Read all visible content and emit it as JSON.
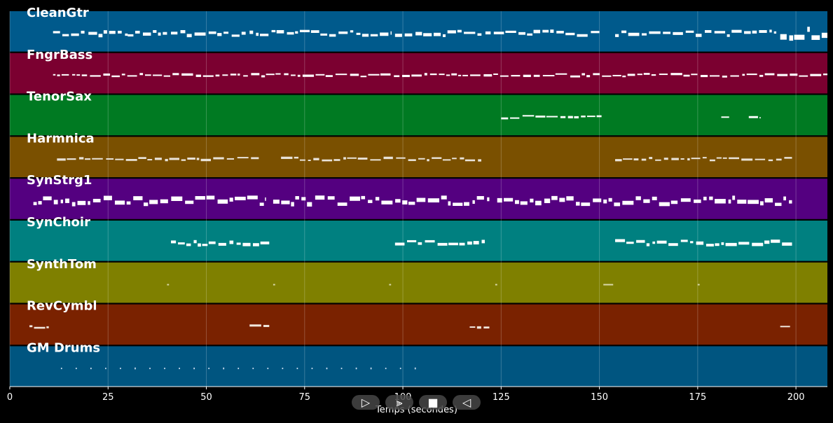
{
  "controls": {
    "play_label": "▷",
    "forward_label": "⫸",
    "stop_label": "■",
    "back_label": "◁"
  },
  "chart_data": {
    "type": "piano-roll",
    "xlabel": "Temps (secondes)",
    "xlim": [
      0,
      208
    ],
    "xticks": [
      0,
      25,
      50,
      75,
      100,
      125,
      150,
      175,
      200
    ],
    "grid": true,
    "tracks": [
      {
        "name": "CleanGtr",
        "color": "#005a8c",
        "bright": "#ffffff",
        "segments": [
          [
            11,
            19,
            1
          ],
          [
            20,
            30,
            1
          ],
          [
            30,
            40,
            1
          ],
          [
            41,
            60,
            1
          ],
          [
            61,
            97,
            1
          ],
          [
            98,
            120,
            1
          ],
          [
            121,
            150,
            1
          ],
          [
            154,
            195,
            1
          ],
          [
            196,
            208,
            2
          ]
        ]
      },
      {
        "name": "FngrBass",
        "color": "#7b0030",
        "bright": "#ffffff",
        "segments": [
          [
            11,
            208,
            0.5
          ]
        ]
      },
      {
        "name": "TenorSax",
        "color": "#007a22",
        "bright": "#ffffff",
        "segments": [
          [
            125,
            151,
            0.6
          ],
          [
            181,
            183,
            0.3
          ],
          [
            188,
            191,
            0.3
          ]
        ]
      },
      {
        "name": "Harmnica",
        "color": "#7a5000",
        "bright": "#e8e2d8",
        "segments": [
          [
            12,
            64,
            0.5
          ],
          [
            69,
            120,
            0.5
          ],
          [
            154,
            199,
            0.5
          ]
        ]
      },
      {
        "name": "SynStrg1",
        "color": "#540080",
        "bright": "#ffffff",
        "segments": [
          [
            6,
            65,
            1.5
          ],
          [
            67,
            122,
            1.5
          ],
          [
            124,
            199,
            1.5
          ]
        ]
      },
      {
        "name": "SynChoir",
        "color": "#008080",
        "bright": "#ffffff",
        "segments": [
          [
            41,
            66,
            1
          ],
          [
            98,
            121,
            1
          ],
          [
            154,
            199,
            1
          ]
        ]
      },
      {
        "name": "SynthTom",
        "color": "#7f8000",
        "bright": "#d8d8a8",
        "segments": [
          [
            40,
            40.5,
            0.3
          ],
          [
            67,
            67.5,
            0.3
          ],
          [
            96.5,
            97,
            0.3
          ],
          [
            123.5,
            124,
            0.3
          ],
          [
            151,
            153.5,
            0.3
          ],
          [
            175,
            175.5,
            0.3
          ]
        ]
      },
      {
        "name": "RevCymbl",
        "color": "#7a2200",
        "bright": "#f0e6dc",
        "segments": [
          [
            5,
            10.5,
            0.5
          ],
          [
            61,
            66,
            0.5
          ],
          [
            117,
            122,
            0.5
          ],
          [
            196,
            198.5,
            0.5
          ]
        ]
      },
      {
        "name": "GM Drums",
        "color": "#005580",
        "bright": "#c8dcf0",
        "segments": [
          [
            13,
            106,
            0.25
          ]
        ]
      }
    ]
  }
}
